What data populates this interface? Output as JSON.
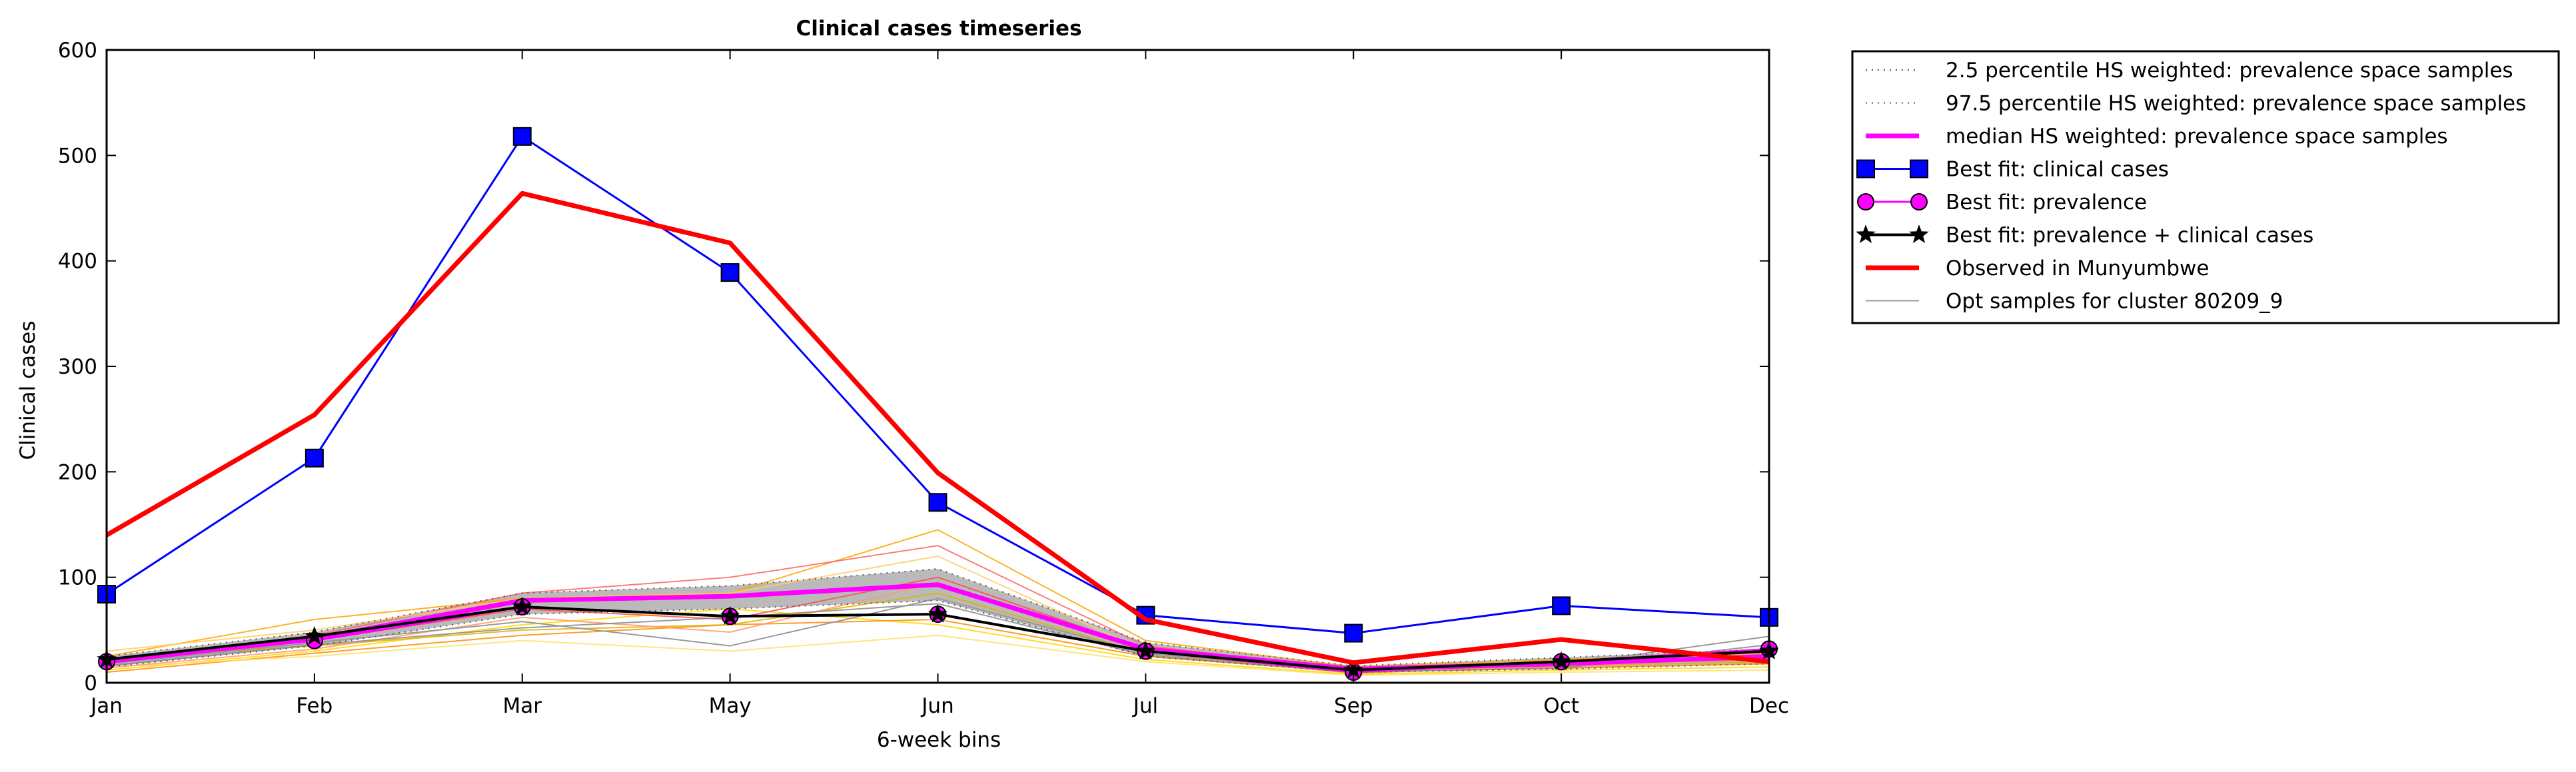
{
  "chart_data": {
    "type": "line",
    "title": "Clinical cases timeseries",
    "xlabel": "6-week bins",
    "ylabel": "Clinical cases",
    "categories": [
      "Jan",
      "Feb",
      "Mar",
      "May",
      "Jun",
      "Jul",
      "Sep",
      "Oct",
      "Dec"
    ],
    "ylim": [
      0,
      600
    ],
    "yticks": [
      0,
      100,
      200,
      300,
      400,
      500,
      600
    ],
    "grid": false,
    "legend_position": "outside-top-right",
    "band": {
      "lower": [
        15,
        35,
        65,
        70,
        78,
        25,
        10,
        13,
        18
      ],
      "upper": [
        25,
        48,
        85,
        92,
        108,
        38,
        16,
        24,
        32
      ],
      "color": "#b3b3b3"
    },
    "series": [
      {
        "name": "2.5 percentile HS weighted: prevalence space samples",
        "color": "#555555",
        "style": "dotted",
        "marker": "none",
        "values": [
          15,
          35,
          65,
          70,
          78,
          25,
          10,
          13,
          18
        ]
      },
      {
        "name": "97.5 percentile HS weighted: prevalence space samples",
        "color": "#555555",
        "style": "dotted",
        "marker": "none",
        "values": [
          25,
          48,
          85,
          92,
          108,
          38,
          16,
          24,
          32
        ]
      },
      {
        "name": "median HS weighted: prevalence space samples",
        "color": "#ff00ff",
        "style": "solid",
        "marker": "none",
        "values": [
          20,
          42,
          78,
          82,
          93,
          32,
          13,
          18,
          25
        ]
      },
      {
        "name": "Best fit: clinical cases",
        "color": "#0000ff",
        "style": "solid",
        "marker": "square",
        "values": [
          84,
          213,
          518,
          389,
          171,
          64,
          47,
          73,
          62
        ]
      },
      {
        "name": "Best fit: prevalence",
        "color": "#ff00ff",
        "style": "solid",
        "marker": "circle",
        "values": [
          20,
          40,
          72,
          63,
          65,
          30,
          10,
          20,
          32
        ]
      },
      {
        "name": "Best fit: prevalence + clinical cases",
        "color": "#000000",
        "style": "solid",
        "marker": "star",
        "values": [
          22,
          44,
          72,
          63,
          65,
          30,
          12,
          20,
          30
        ]
      },
      {
        "name": "Observed in Munyumbwe",
        "color": "#ff0000",
        "style": "solid",
        "marker": "none",
        "values": [
          140,
          254,
          464,
          417,
          199,
          60,
          19,
          41,
          20
        ]
      },
      {
        "name": "Opt samples for cluster 80209_9",
        "color": "#999999",
        "style": "thin",
        "marker": "none",
        "values": [
          18,
          38,
          58,
          35,
          80,
          28,
          11,
          17,
          44
        ]
      }
    ],
    "samples": [
      {
        "color": "#ffa500",
        "values": [
          25,
          60,
          80,
          85,
          145,
          40,
          15,
          22,
          28
        ]
      },
      {
        "color": "#ff6666",
        "values": [
          20,
          45,
          85,
          100,
          130,
          35,
          12,
          20,
          25
        ]
      },
      {
        "color": "#ffd700",
        "values": [
          12,
          30,
          55,
          70,
          55,
          22,
          8,
          12,
          15
        ]
      },
      {
        "color": "#ffcc66",
        "values": [
          30,
          50,
          80,
          85,
          120,
          30,
          14,
          18,
          22
        ]
      },
      {
        "color": "#ff8c00",
        "values": [
          10,
          28,
          45,
          55,
          60,
          25,
          10,
          14,
          18
        ]
      },
      {
        "color": "#ffe066",
        "values": [
          15,
          25,
          40,
          30,
          45,
          20,
          7,
          10,
          12
        ]
      },
      {
        "color": "#ff4d4d",
        "values": [
          18,
          40,
          70,
          60,
          100,
          32,
          12,
          18,
          22
        ]
      },
      {
        "color": "#e0b000",
        "values": [
          22,
          35,
          50,
          55,
          85,
          28,
          9,
          16,
          20
        ]
      },
      {
        "color": "#ff9966",
        "values": [
          14,
          32,
          62,
          48,
          95,
          30,
          11,
          15,
          26
        ]
      },
      {
        "color": "#888888",
        "values": [
          16,
          36,
          52,
          62,
          75,
          26,
          10,
          14,
          36
        ]
      }
    ]
  }
}
